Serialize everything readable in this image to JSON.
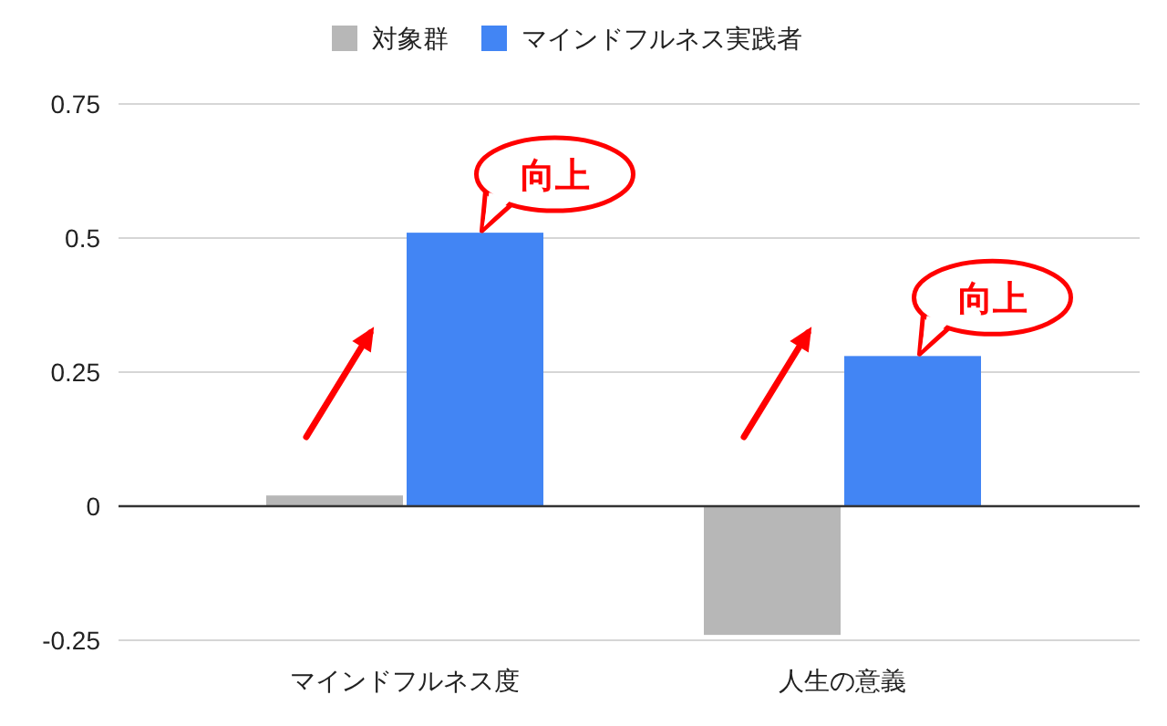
{
  "chart_data": {
    "type": "bar",
    "categories": [
      "マインドフルネス度",
      "人生の意義"
    ],
    "series": [
      {
        "name": "対象群",
        "color": "#b7b7b7",
        "values": [
          0.02,
          -0.24
        ]
      },
      {
        "name": "マインドフルネス実践者",
        "color": "#4285f4",
        "values": [
          0.51,
          0.28
        ]
      }
    ],
    "ylim": [
      -0.25,
      0.75
    ],
    "yticks": [
      -0.25,
      0,
      0.25,
      0.5,
      0.75
    ],
    "grid": "y",
    "legend": "top",
    "annotations": [
      "向上",
      "向上"
    ]
  }
}
